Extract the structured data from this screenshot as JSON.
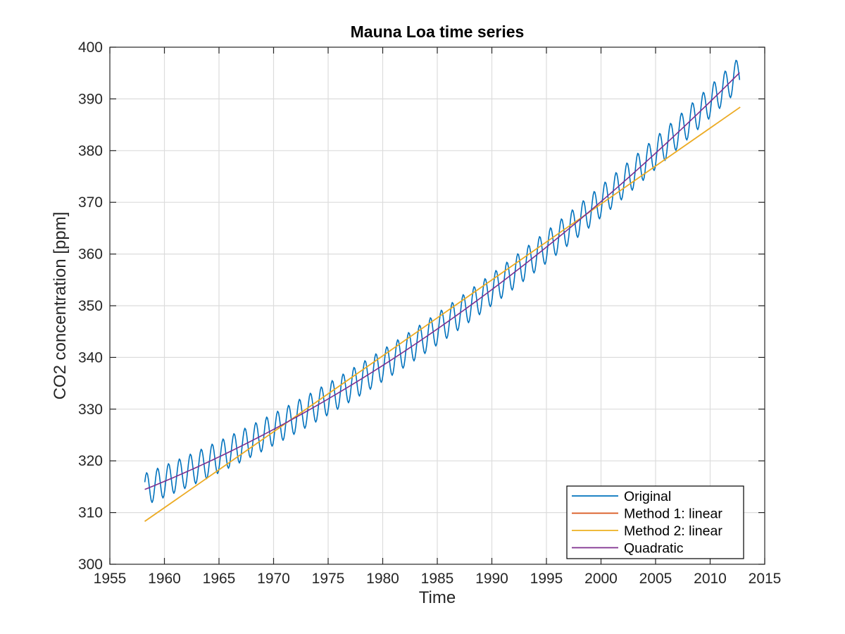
{
  "chart_data": {
    "type": "line",
    "title": "Mauna Loa time series",
    "xlabel": "Time",
    "ylabel": "CO2 concentration [ppm]",
    "xlim": [
      1955,
      2015
    ],
    "ylim": [
      300,
      400
    ],
    "xticks": [
      1955,
      1960,
      1965,
      1970,
      1975,
      1980,
      1985,
      1990,
      1995,
      2000,
      2005,
      2010,
      2015
    ],
    "yticks": [
      300,
      310,
      320,
      330,
      340,
      350,
      360,
      370,
      380,
      390,
      400
    ],
    "grid": true,
    "legend_position": "bottom-right",
    "series": [
      {
        "name": "Original",
        "color": "#0072BD",
        "kind": "seasonal",
        "x_range": [
          1958.2,
          2012.75
        ],
        "trend_quadratic": {
          "at_1958": 314.3,
          "at_1985": 345.5,
          "at_2012": 393.6
        },
        "seasonal_amplitude": 3.1,
        "seasonal_phase_peak_month": 5,
        "samples_per_year": 12
      },
      {
        "name": "Method 1: linear",
        "color": "#D95319",
        "kind": "line",
        "x": [
          1958.2,
          2012.75
        ],
        "y": [
          308.3,
          388.4
        ]
      },
      {
        "name": "Method 2: linear",
        "color": "#EDB120",
        "kind": "line",
        "x": [
          1958.2,
          2012.75
        ],
        "y": [
          308.3,
          388.4
        ]
      },
      {
        "name": "Quadratic",
        "color": "#7E2F8E",
        "kind": "quadratic",
        "x_range": [
          1958.2,
          2012.75
        ],
        "points": {
          "at_1958": 314.3,
          "at_1985": 345.5,
          "at_2012": 393.6
        }
      }
    ]
  }
}
